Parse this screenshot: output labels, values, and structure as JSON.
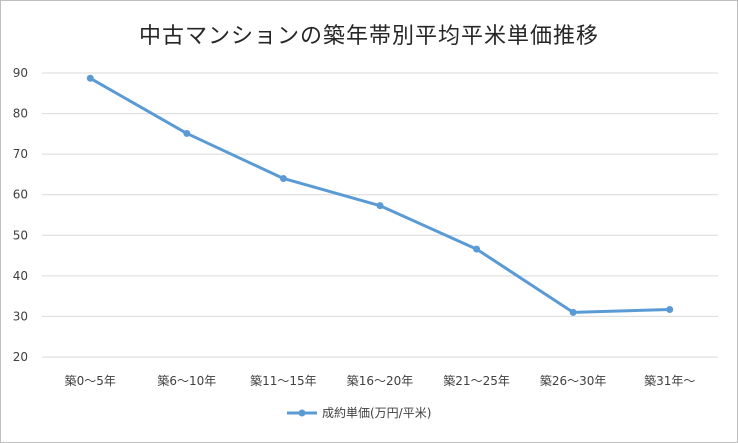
{
  "chart_data": {
    "type": "line",
    "title": "中古マンションの築年帯別平均平米単価推移",
    "categories": [
      "築0～5年",
      "築6～10年",
      "築11～15年",
      "築16～20年",
      "築21～25年",
      "築26～30年",
      "築31年～"
    ],
    "series": [
      {
        "name": "成約単価(万円/平米)",
        "values": [
          88.7,
          75.1,
          64.0,
          57.3,
          46.6,
          31.0,
          31.7
        ]
      }
    ],
    "yticks": [
      20,
      30,
      40,
      50,
      60,
      70,
      80,
      90
    ],
    "ylim": [
      20,
      90
    ],
    "grid": true,
    "legend": "bottom",
    "colors": {
      "line": "#5b9bd5",
      "grid": "#d9d9d9",
      "text": "#404040"
    }
  }
}
